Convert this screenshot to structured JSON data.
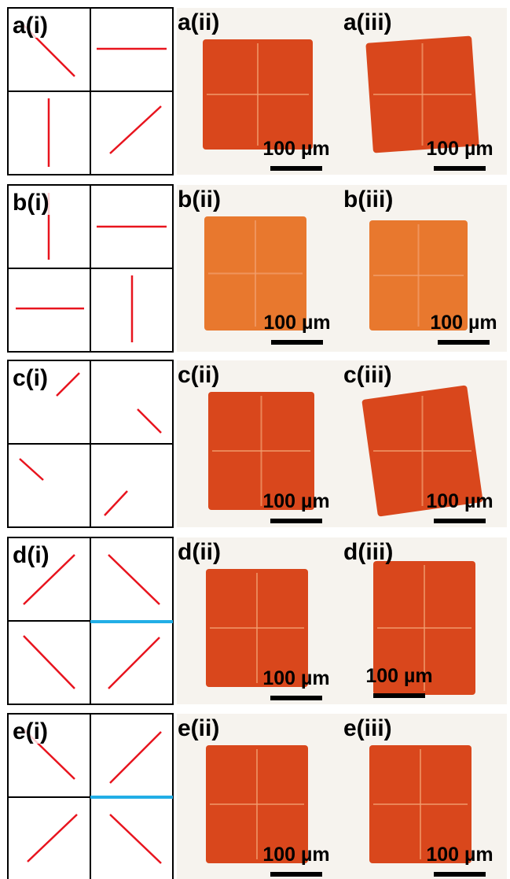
{
  "panels": [
    {
      "labels": [
        "a(i)",
        "a(ii)",
        "a(iii)"
      ],
      "scale_bars": [
        "100 µm",
        "100 µm"
      ]
    },
    {
      "labels": [
        "b(i)",
        "b(ii)",
        "b(iii)"
      ],
      "scale_bars": [
        "100 µm",
        "100 µm"
      ]
    },
    {
      "labels": [
        "c(i)",
        "c(ii)",
        "c(iii)"
      ],
      "scale_bars": [
        "100 µm",
        "100 µm"
      ]
    },
    {
      "labels": [
        "d(i)",
        "d(ii)",
        "d(iii)"
      ],
      "scale_bars": [
        "100 µm",
        "100 µm"
      ]
    },
    {
      "labels": [
        "e(i)",
        "e(ii)",
        "e(iii)"
      ],
      "scale_bars": [
        "100 µm",
        "100 µm"
      ]
    }
  ]
}
